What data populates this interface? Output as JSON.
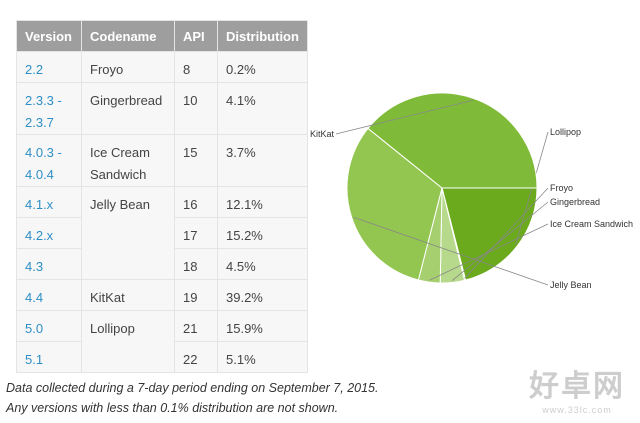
{
  "table": {
    "headers": [
      "Version",
      "Codename",
      "API",
      "Distribution"
    ],
    "rows": [
      {
        "version": "2.2",
        "codename": "Froyo",
        "api": "8",
        "distribution": "0.2%"
      },
      {
        "version": "2.3.3 - 2.3.7",
        "codename": "Gingerbread",
        "api": "10",
        "distribution": "4.1%"
      },
      {
        "version": "4.0.3 - 4.0.4",
        "codename": "Ice Cream Sandwich",
        "api": "15",
        "distribution": "3.7%"
      },
      {
        "version": "4.1.x",
        "codename": "Jelly Bean",
        "api": "16",
        "distribution": "12.1%"
      },
      {
        "version": "4.2.x",
        "codename": "",
        "api": "17",
        "distribution": "15.2%"
      },
      {
        "version": "4.3",
        "codename": "",
        "api": "18",
        "distribution": "4.5%"
      },
      {
        "version": "4.4",
        "codename": "KitKat",
        "api": "19",
        "distribution": "39.2%"
      },
      {
        "version": "5.0",
        "codename": "Lollipop",
        "api": "21",
        "distribution": "15.9%"
      },
      {
        "version": "5.1",
        "codename": "",
        "api": "22",
        "distribution": "5.1%"
      }
    ]
  },
  "chart_data": {
    "type": "pie",
    "slices": [
      {
        "label": "Lollipop",
        "value": 21.0,
        "color": "#6aaa1c"
      },
      {
        "label": "Froyo",
        "value": 0.2,
        "color": "#c4e29a"
      },
      {
        "label": "Gingerbread",
        "value": 4.1,
        "color": "#b6d98b"
      },
      {
        "label": "Ice Cream Sandwich",
        "value": 3.7,
        "color": "#a6d06f"
      },
      {
        "label": "Jelly Bean",
        "value": 31.8,
        "color": "#92c650"
      },
      {
        "label": "KitKat",
        "value": 39.2,
        "color": "#7fbb38"
      }
    ],
    "start_angle_deg": 0,
    "direction": "clockwise"
  },
  "notes": [
    "Data collected during a 7-day period ending on September 7, 2015.",
    "Any versions with less than 0.1% distribution are not shown."
  ],
  "watermark": {
    "main": "好卓网",
    "url": "www.33lc.com"
  }
}
